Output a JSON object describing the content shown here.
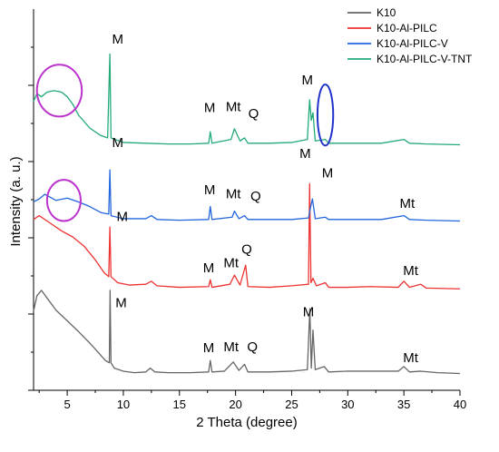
{
  "chart_data": {
    "type": "line",
    "title": "",
    "xlabel": "2 Theta (degree)",
    "ylabel": "Intensity (a. u.)",
    "xlim": [
      2,
      40
    ],
    "x_ticks": [
      5,
      10,
      15,
      20,
      25,
      30,
      35,
      40
    ],
    "y_ticks_visible": false,
    "grid": false,
    "legend_position": "top-right",
    "series": [
      {
        "name": "K10",
        "color": "#666666",
        "offset": 0,
        "points": [
          [
            2.0,
            0.85
          ],
          [
            2.3,
            1.05
          ],
          [
            2.7,
            1.12
          ],
          [
            3.2,
            1.02
          ],
          [
            4,
            0.86
          ],
          [
            5,
            0.72
          ],
          [
            6,
            0.58
          ],
          [
            7,
            0.43
          ],
          [
            7.8,
            0.3
          ],
          [
            8.4,
            0.2
          ],
          [
            8.75,
            0.17
          ],
          [
            8.82,
            1.12
          ],
          [
            8.9,
            0.17
          ],
          [
            9.2,
            0.1
          ],
          [
            10,
            0.06
          ],
          [
            11,
            0.04
          ],
          [
            12,
            0.05
          ],
          [
            12.4,
            0.1
          ],
          [
            12.8,
            0.05
          ],
          [
            14,
            0.04
          ],
          [
            16,
            0.04
          ],
          [
            17.6,
            0.05
          ],
          [
            17.75,
            0.2
          ],
          [
            17.9,
            0.05
          ],
          [
            19,
            0.06
          ],
          [
            19.8,
            0.18
          ],
          [
            20.3,
            0.07
          ],
          [
            20.8,
            0.15
          ],
          [
            21.1,
            0.05
          ],
          [
            23,
            0.05
          ],
          [
            25,
            0.06
          ],
          [
            26.4,
            0.08
          ],
          [
            26.62,
            0.88
          ],
          [
            26.75,
            0.1
          ],
          [
            26.9,
            0.6
          ],
          [
            27.1,
            0.08
          ],
          [
            27.9,
            0.12
          ],
          [
            28.3,
            0.05
          ],
          [
            30,
            0.06
          ],
          [
            32,
            0.06
          ],
          [
            34.5,
            0.06
          ],
          [
            35,
            0.12
          ],
          [
            35.5,
            0.05
          ],
          [
            36.5,
            0.06
          ],
          [
            38,
            0.04
          ],
          [
            40,
            0.03
          ]
        ]
      },
      {
        "name": "K10-Al-PILC",
        "color": "#ee3333",
        "offset": 1.1,
        "points": [
          [
            2.0,
            0.95
          ],
          [
            2.5,
            1.0
          ],
          [
            3.5,
            0.9
          ],
          [
            4.5,
            0.8
          ],
          [
            5.5,
            0.72
          ],
          [
            6.5,
            0.6
          ],
          [
            7.5,
            0.42
          ],
          [
            8.3,
            0.25
          ],
          [
            8.7,
            0.2
          ],
          [
            8.8,
            0.85
          ],
          [
            8.9,
            0.2
          ],
          [
            9.5,
            0.12
          ],
          [
            10.5,
            0.09
          ],
          [
            12,
            0.1
          ],
          [
            12.5,
            0.14
          ],
          [
            13,
            0.08
          ],
          [
            15,
            0.06
          ],
          [
            17.6,
            0.07
          ],
          [
            17.75,
            0.16
          ],
          [
            17.9,
            0.06
          ],
          [
            19.5,
            0.1
          ],
          [
            19.9,
            0.22
          ],
          [
            20.4,
            0.09
          ],
          [
            20.9,
            0.35
          ],
          [
            21.1,
            0.07
          ],
          [
            23,
            0.06
          ],
          [
            25,
            0.08
          ],
          [
            26.5,
            0.1
          ],
          [
            26.6,
            1.42
          ],
          [
            26.72,
            0.12
          ],
          [
            26.9,
            0.18
          ],
          [
            27.2,
            0.08
          ],
          [
            28,
            0.12
          ],
          [
            28.3,
            0.06
          ],
          [
            30,
            0.06
          ],
          [
            32,
            0.07
          ],
          [
            34.5,
            0.06
          ],
          [
            35,
            0.14
          ],
          [
            35.5,
            0.06
          ],
          [
            36.5,
            0.1
          ],
          [
            37,
            0.05
          ],
          [
            40,
            0.04
          ]
        ]
      },
      {
        "name": "K10-Al-PILC-V",
        "color": "#2266dd",
        "offset": 2.0,
        "points": [
          [
            2.0,
            0.28
          ],
          [
            2.5,
            0.32
          ],
          [
            3,
            0.38
          ],
          [
            3.5,
            0.34
          ],
          [
            4,
            0.3
          ],
          [
            5,
            0.33
          ],
          [
            6,
            0.28
          ],
          [
            7,
            0.22
          ],
          [
            8,
            0.14
          ],
          [
            8.7,
            0.12
          ],
          [
            8.8,
            0.7
          ],
          [
            8.9,
            0.1
          ],
          [
            10,
            0.06
          ],
          [
            12,
            0.06
          ],
          [
            12.5,
            0.1
          ],
          [
            13,
            0.05
          ],
          [
            15,
            0.04
          ],
          [
            17.6,
            0.05
          ],
          [
            17.75,
            0.22
          ],
          [
            17.9,
            0.05
          ],
          [
            19.7,
            0.08
          ],
          [
            19.9,
            0.16
          ],
          [
            20.3,
            0.06
          ],
          [
            20.8,
            0.1
          ],
          [
            21.1,
            0.05
          ],
          [
            23,
            0.05
          ],
          [
            25,
            0.05
          ],
          [
            26.5,
            0.07
          ],
          [
            26.7,
            0.22
          ],
          [
            26.85,
            0.32
          ],
          [
            27.1,
            0.06
          ],
          [
            28,
            0.08
          ],
          [
            28.3,
            0.05
          ],
          [
            30,
            0.05
          ],
          [
            33,
            0.05
          ],
          [
            35,
            0.1
          ],
          [
            35.5,
            0.05
          ],
          [
            37,
            0.04
          ],
          [
            40,
            0.03
          ]
        ]
      },
      {
        "name": "K10-Al-PILC-V-TNT",
        "color": "#22aa77",
        "offset": 3.0,
        "points": [
          [
            2.0,
            0.6
          ],
          [
            2.3,
            0.7
          ],
          [
            2.7,
            0.66
          ],
          [
            3.2,
            0.72
          ],
          [
            3.8,
            0.74
          ],
          [
            4.5,
            0.72
          ],
          [
            5,
            0.66
          ],
          [
            5.5,
            0.56
          ],
          [
            6,
            0.42
          ],
          [
            7,
            0.25
          ],
          [
            8,
            0.15
          ],
          [
            8.6,
            0.12
          ],
          [
            8.8,
            1.22
          ],
          [
            8.9,
            0.12
          ],
          [
            10,
            0.06
          ],
          [
            12,
            0.05
          ],
          [
            14,
            0.04
          ],
          [
            16,
            0.04
          ],
          [
            17.6,
            0.05
          ],
          [
            17.75,
            0.2
          ],
          [
            17.9,
            0.05
          ],
          [
            19.6,
            0.1
          ],
          [
            19.9,
            0.24
          ],
          [
            20.4,
            0.08
          ],
          [
            20.8,
            0.12
          ],
          [
            21.1,
            0.05
          ],
          [
            23,
            0.05
          ],
          [
            25,
            0.06
          ],
          [
            26.4,
            0.1
          ],
          [
            26.6,
            0.62
          ],
          [
            26.75,
            0.35
          ],
          [
            26.9,
            0.45
          ],
          [
            27.1,
            0.08
          ],
          [
            28,
            0.1
          ],
          [
            28.3,
            0.05
          ],
          [
            30,
            0.05
          ],
          [
            33,
            0.05
          ],
          [
            35,
            0.1
          ],
          [
            35.5,
            0.05
          ],
          [
            37,
            0.04
          ],
          [
            40,
            0.03
          ]
        ]
      }
    ],
    "annotations": [
      {
        "text": "M",
        "x": 9.5,
        "y": 4.36
      },
      {
        "text": "M",
        "x": 17.7,
        "y": 3.46
      },
      {
        "text": "Mt",
        "x": 19.8,
        "y": 3.47
      },
      {
        "text": "Q",
        "x": 21.6,
        "y": 3.38
      },
      {
        "text": "M",
        "x": 26.4,
        "y": 3.82
      },
      {
        "text": "M",
        "x": 9.5,
        "y": 3.0
      },
      {
        "text": "M",
        "x": 17.7,
        "y": 2.38
      },
      {
        "text": "Mt",
        "x": 19.8,
        "y": 2.33
      },
      {
        "text": "Q",
        "x": 21.8,
        "y": 2.3
      },
      {
        "text": "M",
        "x": 26.2,
        "y": 2.86
      },
      {
        "text": "M",
        "x": 28.2,
        "y": 2.6
      },
      {
        "text": "Mt",
        "x": 35.3,
        "y": 2.2
      },
      {
        "text": "M",
        "x": 9.9,
        "y": 2.03
      },
      {
        "text": "M",
        "x": 17.6,
        "y": 1.36
      },
      {
        "text": "Mt",
        "x": 19.6,
        "y": 1.42
      },
      {
        "text": "Q",
        "x": 21.0,
        "y": 1.6
      },
      {
        "text": "Mt",
        "x": 35.6,
        "y": 1.32
      },
      {
        "text": "M",
        "x": 9.8,
        "y": 0.9
      },
      {
        "text": "M",
        "x": 17.6,
        "y": 0.31
      },
      {
        "text": "Mt",
        "x": 19.6,
        "y": 0.32
      },
      {
        "text": "Q",
        "x": 21.5,
        "y": 0.32
      },
      {
        "text": "M",
        "x": 26.5,
        "y": 0.78
      },
      {
        "text": "Mt",
        "x": 35.6,
        "y": 0.18
      }
    ],
    "highlights": [
      {
        "shape": "ellipse",
        "color": "#bb33cc",
        "cx": 4.3,
        "cy": 3.74,
        "rx": 2.0,
        "ry": 0.34
      },
      {
        "shape": "ellipse",
        "color": "#2233cc",
        "cx": 28.0,
        "cy": 3.42,
        "rx": 0.7,
        "ry": 0.4
      },
      {
        "shape": "ellipse",
        "color": "#bb33cc",
        "cx": 4.7,
        "cy": 2.3,
        "rx": 1.5,
        "ry": 0.27
      }
    ]
  }
}
